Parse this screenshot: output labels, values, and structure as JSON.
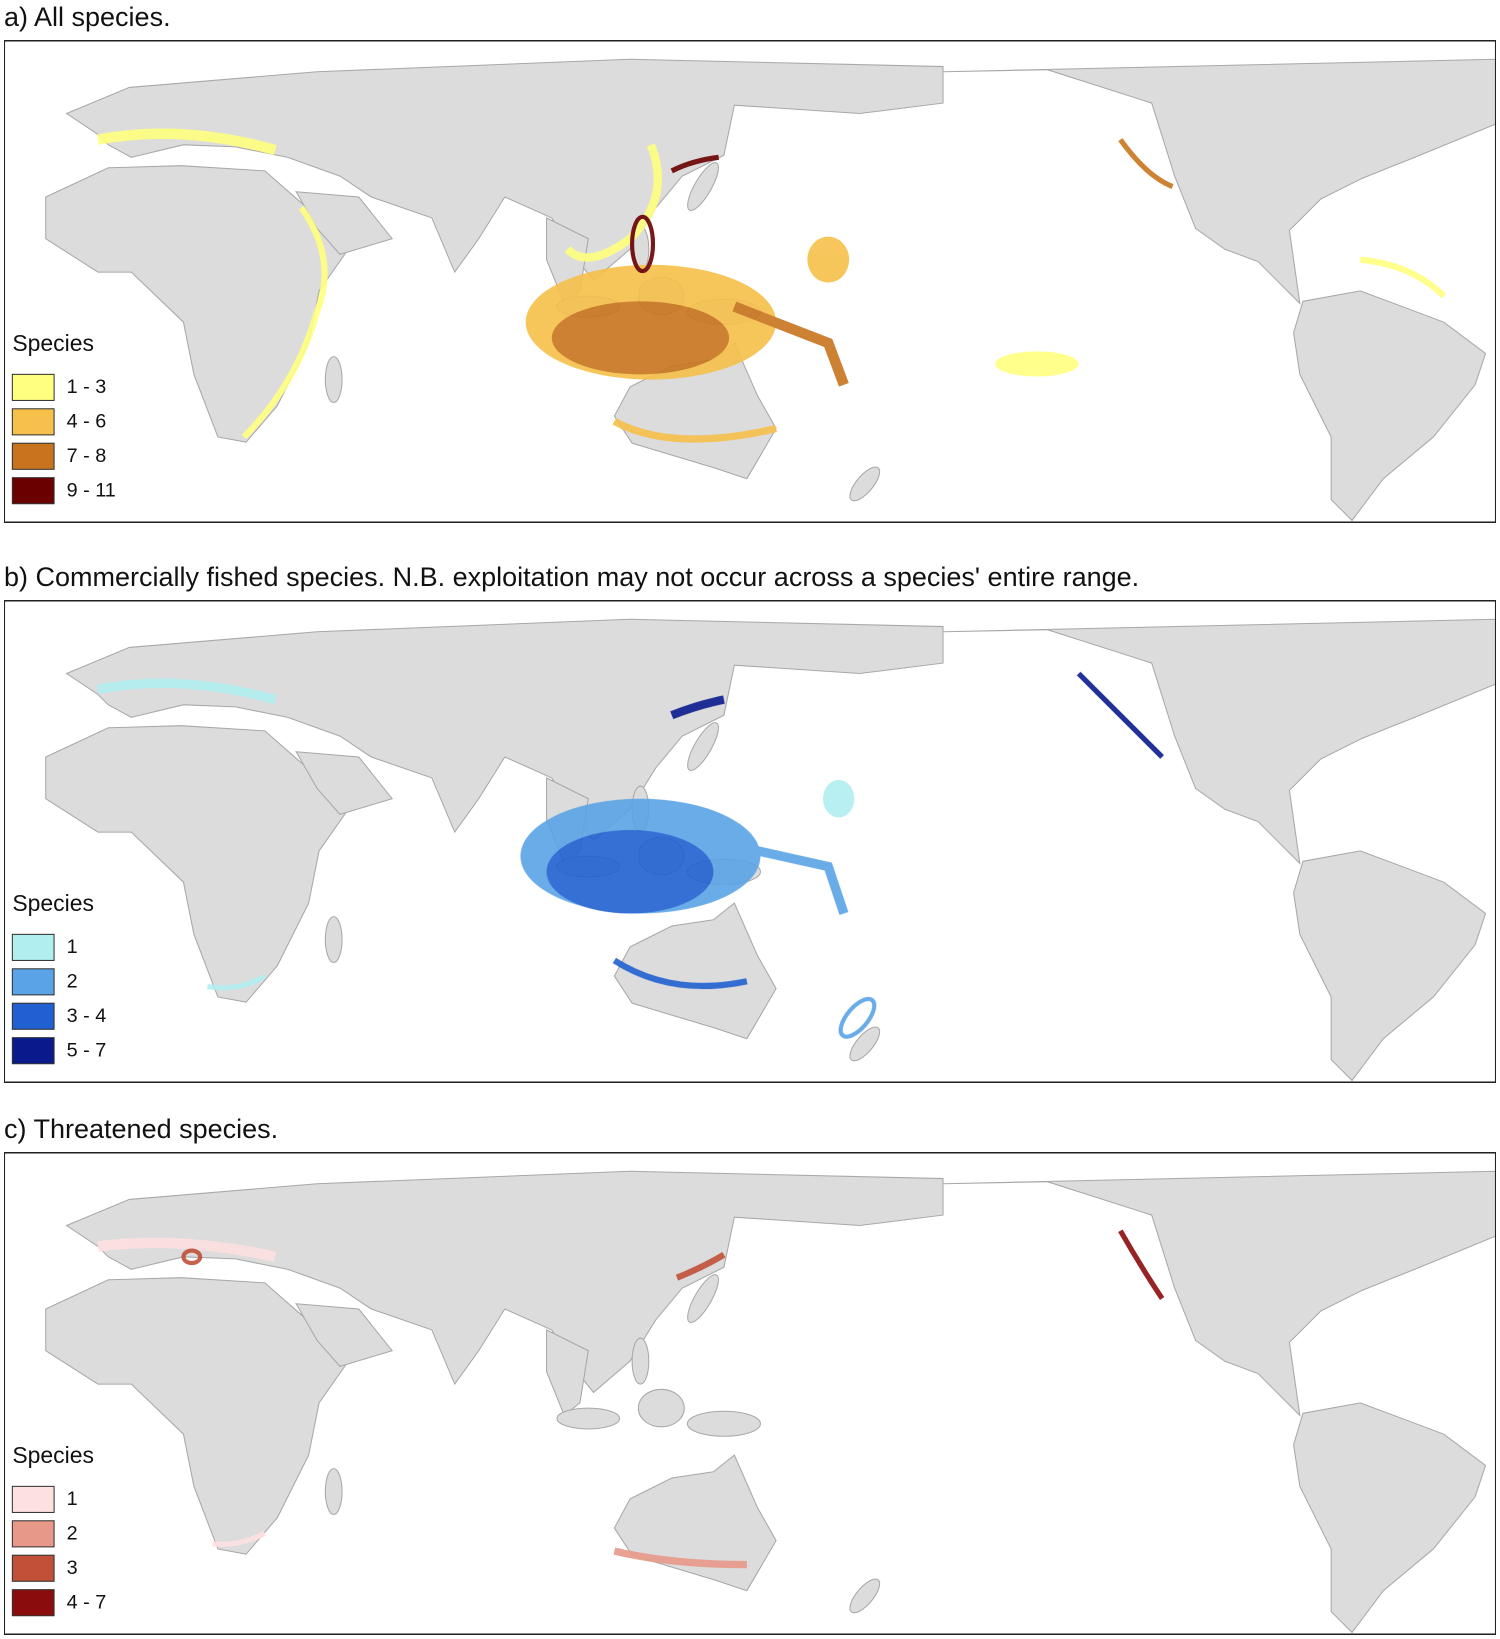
{
  "panels": [
    {
      "title": "a) All species.",
      "legend_title": "Species",
      "legend": [
        {
          "label": "1 - 3",
          "color": "#ffff80"
        },
        {
          "label": "4 - 6",
          "color": "#f6c04a"
        },
        {
          "label": "7 - 8",
          "color": "#c8741e"
        },
        {
          "label": "9 - 11",
          "color": "#6b0000"
        }
      ]
    },
    {
      "title": "b) Commercially fished species. N.B. exploitation may not occur across a species' entire range.",
      "legend_title": "Species",
      "legend": [
        {
          "label": "1",
          "color": "#b0eef0"
        },
        {
          "label": "2",
          "color": "#5aa3e6"
        },
        {
          "label": "3 - 4",
          "color": "#2060d0"
        },
        {
          "label": "5 - 7",
          "color": "#0a1a8c"
        }
      ]
    },
    {
      "title": "c) Threatened species.",
      "legend_title": "Species",
      "legend": [
        {
          "label": "1",
          "color": "#fde0e0"
        },
        {
          "label": "2",
          "color": "#e89888"
        },
        {
          "label": "3",
          "color": "#c05038"
        },
        {
          "label": "4 - 7",
          "color": "#8b0c0c"
        }
      ]
    }
  ]
}
